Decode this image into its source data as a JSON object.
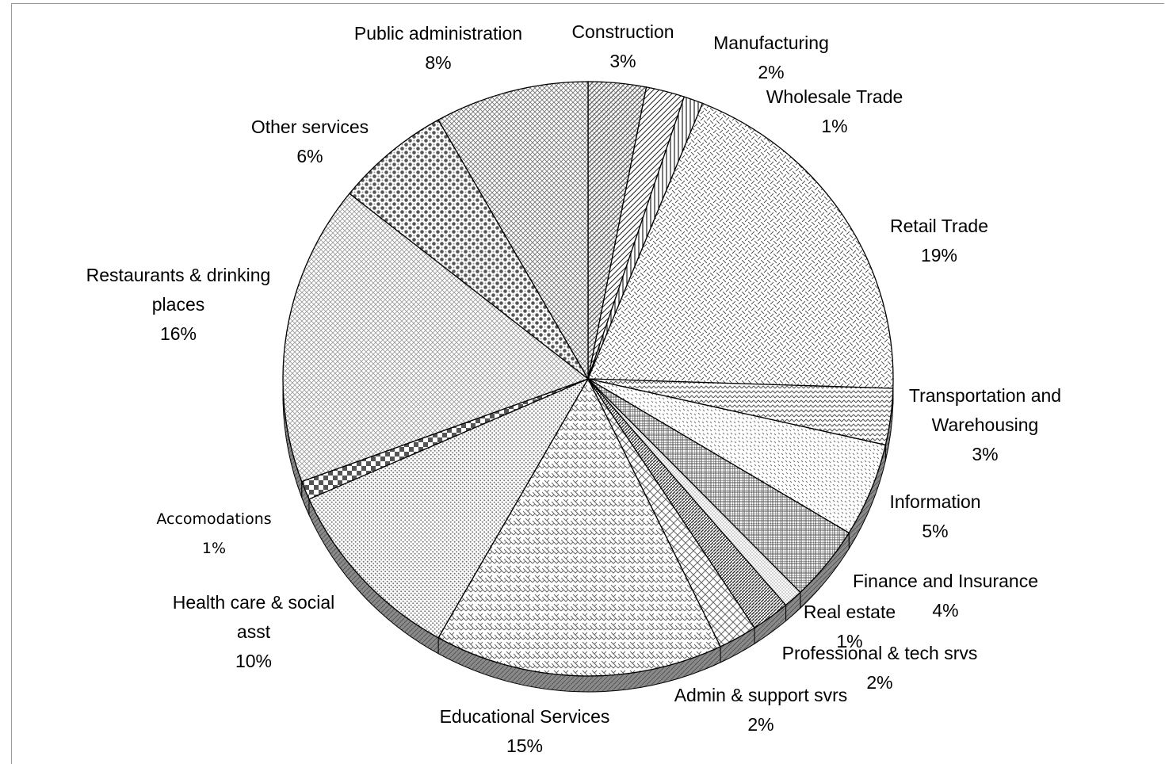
{
  "chart_data": {
    "type": "pie",
    "title": "",
    "style": "3d-exploded-patterned-grayscale",
    "slices": [
      {
        "label": "Construction",
        "value": 3,
        "value_label": "3%"
      },
      {
        "label": "Manufacturing",
        "value": 2,
        "value_label": "2%"
      },
      {
        "label": "Wholesale Trade",
        "value": 1,
        "value_label": "1%"
      },
      {
        "label": "Retail Trade",
        "value": 19,
        "value_label": "19%"
      },
      {
        "label": "Transportation and Warehousing",
        "value": 3,
        "value_label": "3%"
      },
      {
        "label": "Information",
        "value": 5,
        "value_label": "5%"
      },
      {
        "label": "Finance and Insurance",
        "value": 4,
        "value_label": "4%"
      },
      {
        "label": "Real estate",
        "value": 1,
        "value_label": "1%"
      },
      {
        "label": "Professional & tech srvs",
        "value": 2,
        "value_label": "2%"
      },
      {
        "label": "Admin & support svrs",
        "value": 2,
        "value_label": "2%"
      },
      {
        "label": "Educational Services",
        "value": 15,
        "value_label": "15%"
      },
      {
        "label": "Health care & social asst",
        "value": 10,
        "value_label": "10%"
      },
      {
        "label": "Accomodations",
        "value": 1,
        "value_label": "1%"
      },
      {
        "label": "Restaurants & drinking places",
        "value": 16,
        "value_label": "16%"
      },
      {
        "label": "Other services",
        "value": 6,
        "value_label": "6%"
      },
      {
        "label": "Public administration",
        "value": 8,
        "value_label": "8%"
      }
    ]
  }
}
